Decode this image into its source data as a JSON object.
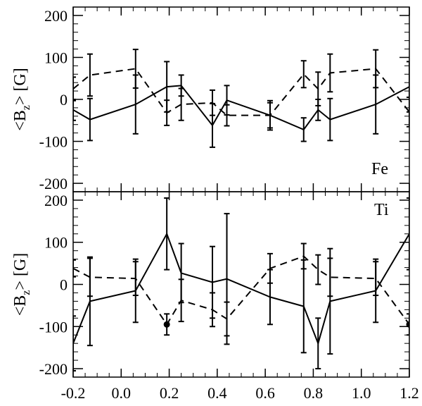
{
  "chart_data": [
    {
      "type": "line",
      "panel_label": "Fe",
      "ylabel": "<Bz> [G]",
      "ylabel_main": "<B",
      "ylabel_sub": "z",
      "ylabel_tail": "> [G]",
      "xlim": [
        -0.2,
        1.2
      ],
      "ylim": [
        -220,
        220
      ],
      "yticks": [
        -200,
        -100,
        0,
        100,
        200
      ],
      "xticks": [
        -0.2,
        0.0,
        0.2,
        0.4,
        0.6,
        0.8,
        1.0,
        1.2
      ],
      "series": [
        {
          "style": "solid",
          "points": [
            {
              "x": -0.2,
              "y": -25,
              "err": 25
            },
            {
              "x": -0.13,
              "y": -48,
              "err": 50
            },
            {
              "x": 0.06,
              "y": -12,
              "err": 70
            },
            {
              "x": 0.19,
              "y": 30,
              "err": 60
            },
            {
              "x": 0.25,
              "y": 33,
              "err": 25
            },
            {
              "x": 0.38,
              "y": -62,
              "err": 52
            },
            {
              "x": 0.44,
              "y": -2,
              "err": 35
            },
            {
              "x": 0.62,
              "y": -38,
              "err": 30
            },
            {
              "x": 0.76,
              "y": -72,
              "err": 28
            },
            {
              "x": 0.82,
              "y": -25,
              "err": 25
            },
            {
              "x": 0.87,
              "y": -48,
              "err": 50
            },
            {
              "x": 1.06,
              "y": -12,
              "err": 70
            },
            {
              "x": 1.2,
              "y": 30,
              "err": 60
            }
          ]
        },
        {
          "style": "dashed",
          "points": [
            {
              "x": -0.2,
              "y": 25,
              "err": 28
            },
            {
              "x": -0.13,
              "y": 58,
              "err": 50
            },
            {
              "x": 0.06,
              "y": 73,
              "err": 46
            },
            {
              "x": 0.19,
              "y": -32,
              "err": 30
            },
            {
              "x": 0.25,
              "y": -12,
              "err": 38
            },
            {
              "x": 0.38,
              "y": -8,
              "err": 30
            },
            {
              "x": 0.44,
              "y": -38,
              "err": 25
            },
            {
              "x": 0.62,
              "y": -38,
              "err": 35
            },
            {
              "x": 0.76,
              "y": 60,
              "err": 32
            },
            {
              "x": 0.82,
              "y": 25,
              "err": 40
            },
            {
              "x": 0.87,
              "y": 63,
              "err": 45
            },
            {
              "x": 1.06,
              "y": 73,
              "err": 45
            },
            {
              "x": 1.2,
              "y": -30,
              "err": 35
            }
          ]
        }
      ]
    },
    {
      "type": "line",
      "panel_label": "Ti",
      "ylabel": "<Bz> [G]",
      "ylabel_main": "<B",
      "ylabel_sub": "z",
      "ylabel_tail": "> [G]",
      "xlim": [
        -0.2,
        1.2
      ],
      "ylim": [
        -220,
        220
      ],
      "yticks": [
        -200,
        -100,
        0,
        100,
        200
      ],
      "xticks": [
        -0.2,
        0.0,
        0.2,
        0.4,
        0.6,
        0.8,
        1.0,
        1.2
      ],
      "xtick_labels": [
        "-0.2",
        "0.0",
        "0.2",
        "0.4",
        "0.6",
        "0.8",
        "1.0",
        "1.2"
      ],
      "series": [
        {
          "style": "solid",
          "points": [
            {
              "x": -0.2,
              "y": -140,
              "err": 65
            },
            {
              "x": -0.13,
              "y": -40,
              "err": 105
            },
            {
              "x": 0.06,
              "y": -15,
              "err": 75
            },
            {
              "x": 0.19,
              "y": 120,
              "err": 85
            },
            {
              "x": 0.25,
              "y": 27,
              "err": 70
            },
            {
              "x": 0.38,
              "y": 5,
              "err": 85
            },
            {
              "x": 0.44,
              "y": 13,
              "err": 155
            },
            {
              "x": 0.62,
              "y": -30,
              "err": 65
            },
            {
              "x": 0.76,
              "y": -52,
              "err": 110
            },
            {
              "x": 0.82,
              "y": -140,
              "err": 60
            },
            {
              "x": 0.87,
              "y": -40,
              "err": 125
            },
            {
              "x": 1.06,
              "y": -15,
              "err": 75
            },
            {
              "x": 1.2,
              "y": 120,
              "err": 85
            }
          ]
        },
        {
          "style": "dashed",
          "points": [
            {
              "x": -0.2,
              "y": 38,
              "err": 20
            },
            {
              "x": -0.13,
              "y": 17,
              "err": 45
            },
            {
              "x": 0.06,
              "y": 14,
              "err": 40
            },
            {
              "x": 0.19,
              "y": -95,
              "err": 25
            },
            {
              "x": 0.25,
              "y": -38,
              "err": 50
            },
            {
              "x": 0.38,
              "y": -60,
              "err": 40
            },
            {
              "x": 0.44,
              "y": -82,
              "err": 40
            },
            {
              "x": 0.62,
              "y": 38,
              "err": 35
            },
            {
              "x": 0.76,
              "y": 67,
              "err": 30
            },
            {
              "x": 0.82,
              "y": 35,
              "err": 35
            },
            {
              "x": 0.87,
              "y": 17,
              "err": 45
            },
            {
              "x": 1.06,
              "y": 14,
              "err": 40
            },
            {
              "x": 1.2,
              "y": -95,
              "err": 25
            }
          ]
        }
      ],
      "markers": [
        {
          "x": 0.19,
          "y": -95
        },
        {
          "x": 1.2,
          "y": -95
        }
      ]
    }
  ]
}
